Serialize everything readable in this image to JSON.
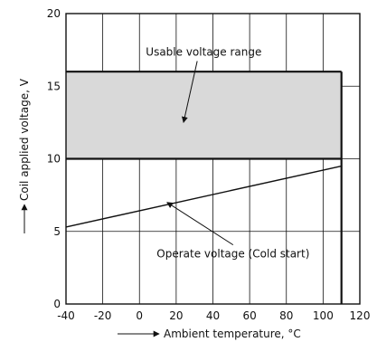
{
  "chart_data": {
    "type": "area",
    "title": "",
    "xlabel": "Ambient temperature, °C",
    "ylabel": "Coil applied voltage, V",
    "xlim": [
      -40,
      120
    ],
    "ylim": [
      0,
      20
    ],
    "xticks": [
      -40,
      -20,
      0,
      20,
      40,
      60,
      80,
      100,
      120
    ],
    "yticks": [
      0,
      5,
      10,
      15,
      20
    ],
    "grid": true,
    "usable_range": {
      "label": "Usable voltage range",
      "x": [
        -40,
        110
      ],
      "y_low": 10,
      "y_high": 16,
      "fill_color": "#d9d9d9"
    },
    "series": [
      {
        "name": "Operate voltage (Cold start)",
        "x": [
          -40,
          110
        ],
        "y": [
          5.3,
          9.5
        ]
      }
    ],
    "boundary": {
      "x": 110,
      "y": [
        0,
        16
      ]
    },
    "annotations": [
      {
        "text": "Usable voltage range",
        "text_at": [
          35,
          17.1
        ],
        "arrow_to": [
          24,
          12.5
        ]
      },
      {
        "text": "Operate voltage (Cold start)",
        "text_at": [
          51,
          3.2
        ],
        "arrow_to": [
          15,
          7
        ]
      }
    ]
  }
}
